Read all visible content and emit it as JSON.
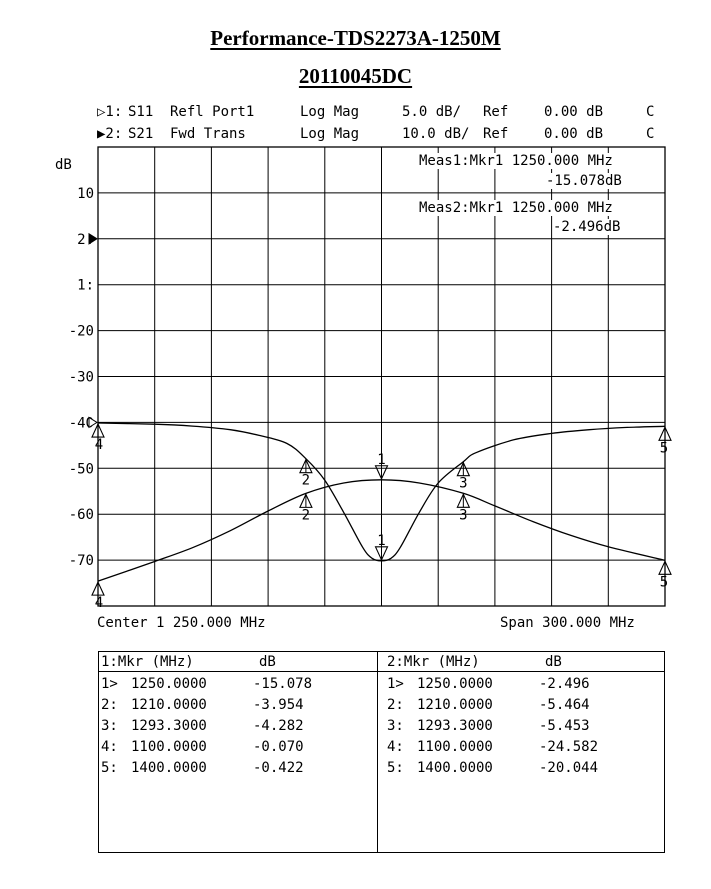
{
  "title": "Performance-TDS2273A-1250M",
  "subtitle": "20110045DC",
  "channels": [
    {
      "marker": "▷1:",
      "param": "S11",
      "desc": "Refl Port1",
      "format": "Log Mag",
      "scale": "5.0 dB/",
      "ref_label": "Ref",
      "ref": "0.00 dB",
      "flag": "C"
    },
    {
      "marker": "▶2:",
      "param": "S21",
      "desc": "Fwd Trans",
      "format": "Log Mag",
      "scale": "10.0 dB/",
      "ref_label": "Ref",
      "ref": "0.00 dB",
      "flag": "C"
    }
  ],
  "meas": [
    {
      "label": "Meas1:Mkr1 1250.000 MHz",
      "value": "-15.078dB"
    },
    {
      "label": "Meas2:Mkr1 1250.000 MHz",
      "value": "-2.496dB"
    }
  ],
  "footer": {
    "center": "Center 1 250.000 MHz",
    "span": "Span 300.000 MHz"
  },
  "chart_data": {
    "type": "line",
    "ylabel": "dB",
    "ytick_labels": [
      "10",
      "2:",
      "1:",
      "-20",
      "-30",
      "-40",
      "-50",
      "-60",
      "-70"
    ],
    "xlim": [
      1100,
      1400
    ],
    "grid": true,
    "channels": [
      {
        "id": 1,
        "param": "S11",
        "scale_db_per_div": 5.0,
        "ref_db": 0.0,
        "ref_div": 6,
        "x": [
          1100,
          1130,
          1150,
          1170,
          1185,
          1200,
          1210,
          1220,
          1230,
          1240,
          1245,
          1250,
          1255,
          1260,
          1270,
          1280,
          1293.3,
          1300,
          1320,
          1340,
          1360,
          1380,
          1400
        ],
        "y": [
          -0.07,
          -0.2,
          -0.4,
          -0.8,
          -1.4,
          -2.3,
          -3.954,
          -6.3,
          -9.8,
          -13.6,
          -14.8,
          -15.078,
          -14.8,
          -13.6,
          -9.8,
          -6.6,
          -4.282,
          -3.3,
          -1.9,
          -1.2,
          -0.8,
          -0.55,
          -0.422
        ]
      },
      {
        "id": 2,
        "param": "S21",
        "scale_db_per_div": 10.0,
        "ref_db": 0.0,
        "ref_div": 7,
        "x": [
          1100,
          1130,
          1150,
          1170,
          1190,
          1210,
          1230,
          1250,
          1270,
          1293.3,
          1310,
          1330,
          1350,
          1370,
          1400
        ],
        "y": [
          -24.582,
          -20.3,
          -17.3,
          -13.6,
          -9.3,
          -5.464,
          -3.2,
          -2.496,
          -3.2,
          -5.453,
          -8.2,
          -11.6,
          -14.6,
          -17.1,
          -20.044
        ]
      }
    ],
    "markers": [
      {
        "channel": 1,
        "id": "1",
        "x": 1250.0,
        "y": -15.078,
        "active": true
      },
      {
        "channel": 1,
        "id": "2",
        "x": 1210.0,
        "y": -3.954
      },
      {
        "channel": 1,
        "id": "3",
        "x": 1293.3,
        "y": -4.282
      },
      {
        "channel": 1,
        "id": "4",
        "x": 1100.0,
        "y": -0.07
      },
      {
        "channel": 1,
        "id": "5",
        "x": 1400.0,
        "y": -0.422
      },
      {
        "channel": 2,
        "id": "1",
        "x": 1250.0,
        "y": -2.496,
        "active": true
      },
      {
        "channel": 2,
        "id": "2",
        "x": 1210.0,
        "y": -5.464
      },
      {
        "channel": 2,
        "id": "3",
        "x": 1293.3,
        "y": -5.453
      },
      {
        "channel": 2,
        "id": "4",
        "x": 1100.0,
        "y": -24.582
      },
      {
        "channel": 2,
        "id": "5",
        "x": 1400.0,
        "y": -20.044
      }
    ]
  },
  "marker_table": [
    {
      "header": "1:Mkr (MHz)",
      "unit": "dB",
      "rows": [
        [
          "1>",
          "1250.0000",
          "-15.078"
        ],
        [
          "2:",
          "1210.0000",
          "-3.954"
        ],
        [
          "3:",
          "1293.3000",
          "-4.282"
        ],
        [
          "4:",
          "1100.0000",
          "-0.070"
        ],
        [
          "5:",
          "1400.0000",
          "-0.422"
        ]
      ]
    },
    {
      "header": "2:Mkr (MHz)",
      "unit": "dB",
      "rows": [
        [
          "1>",
          "1250.0000",
          "-2.496"
        ],
        [
          "2:",
          "1210.0000",
          "-5.464"
        ],
        [
          "3:",
          "1293.3000",
          "-5.453"
        ],
        [
          "4:",
          "1100.0000",
          "-24.582"
        ],
        [
          "5:",
          "1400.0000",
          "-20.044"
        ]
      ]
    }
  ]
}
